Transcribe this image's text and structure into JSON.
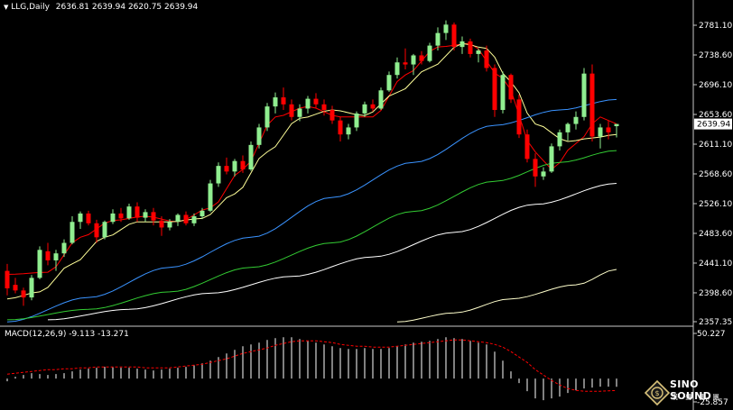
{
  "header": {
    "symbol": "LLG,Daily",
    "ohlc": "2636.81 2639.94 2620.75 2639.94"
  },
  "macd_header": "MACD(12,26,9) -9.113 -13.271",
  "logo": {
    "brand": "SINO SOUND",
    "sub": "漢 聲 集 團"
  },
  "colors": {
    "bull": "#90EE90",
    "bear": "#FF0000",
    "ma5": "#FF0000",
    "ma10": "#FFFF99",
    "ma60": "#3A93FF",
    "ma120": "#33CC33",
    "ma200": "#FFFFFF",
    "ma365": "#FFFFCC",
    "macd_hist": "#FFFFFF",
    "macd_signal": "#FF0000"
  },
  "chart_data": [
    {
      "type": "candlestick",
      "series_title": "LLG,Daily",
      "current_price": "2639.94",
      "y_ticks": [
        "2781.10",
        "2738.60",
        "2696.10",
        "2653.60",
        "2611.10",
        "2568.60",
        "2526.10",
        "2483.60",
        "2441.10",
        "2398.60",
        "2357.35"
      ],
      "ylim": [
        2357.35,
        2781.1
      ],
      "candles": [
        [
          2430,
          2440,
          2395,
          2405
        ],
        [
          2410,
          2420,
          2398,
          2402
        ],
        [
          2402,
          2406,
          2380,
          2392
        ],
        [
          2392,
          2424,
          2388,
          2420
        ],
        [
          2420,
          2465,
          2418,
          2460
        ],
        [
          2458,
          2470,
          2438,
          2445
        ],
        [
          2445,
          2460,
          2430,
          2455
        ],
        [
          2455,
          2475,
          2450,
          2470
        ],
        [
          2470,
          2508,
          2468,
          2500
        ],
        [
          2500,
          2515,
          2490,
          2512
        ],
        [
          2512,
          2516,
          2495,
          2498
        ],
        [
          2498,
          2503,
          2470,
          2478
        ],
        [
          2478,
          2502,
          2475,
          2500
        ],
        [
          2500,
          2518,
          2497,
          2512
        ],
        [
          2512,
          2520,
          2500,
          2505
        ],
        [
          2505,
          2526,
          2503,
          2522
        ],
        [
          2522,
          2528,
          2500,
          2506
        ],
        [
          2506,
          2518,
          2500,
          2514
        ],
        [
          2514,
          2520,
          2495,
          2502
        ],
        [
          2502,
          2508,
          2480,
          2492
        ],
        [
          2492,
          2504,
          2488,
          2500
        ],
        [
          2500,
          2512,
          2494,
          2510
        ],
        [
          2510,
          2515,
          2495,
          2498
        ],
        [
          2498,
          2512,
          2494,
          2508
        ],
        [
          2508,
          2520,
          2504,
          2516
        ],
        [
          2516,
          2560,
          2514,
          2555
        ],
        [
          2555,
          2585,
          2550,
          2580
        ],
        [
          2580,
          2592,
          2568,
          2572
        ],
        [
          2572,
          2590,
          2565,
          2587
        ],
        [
          2587,
          2595,
          2570,
          2575
        ],
        [
          2575,
          2615,
          2573,
          2610
        ],
        [
          2610,
          2640,
          2605,
          2635
        ],
        [
          2635,
          2670,
          2630,
          2665
        ],
        [
          2665,
          2685,
          2655,
          2678
        ],
        [
          2678,
          2692,
          2660,
          2668
        ],
        [
          2668,
          2675,
          2645,
          2650
        ],
        [
          2650,
          2668,
          2644,
          2662
        ],
        [
          2662,
          2680,
          2655,
          2676
        ],
        [
          2676,
          2684,
          2662,
          2668
        ],
        [
          2668,
          2675,
          2652,
          2660
        ],
        [
          2660,
          2666,
          2640,
          2645
        ],
        [
          2645,
          2650,
          2615,
          2625
        ],
        [
          2625,
          2640,
          2618,
          2635
        ],
        [
          2635,
          2658,
          2630,
          2655
        ],
        [
          2655,
          2672,
          2650,
          2668
        ],
        [
          2668,
          2675,
          2658,
          2662
        ],
        [
          2662,
          2692,
          2660,
          2688
        ],
        [
          2688,
          2715,
          2686,
          2710
        ],
        [
          2710,
          2735,
          2705,
          2728
        ],
        [
          2728,
          2748,
          2718,
          2725
        ],
        [
          2725,
          2740,
          2710,
          2738
        ],
        [
          2738,
          2744,
          2725,
          2730
        ],
        [
          2730,
          2756,
          2728,
          2752
        ],
        [
          2752,
          2778,
          2745,
          2770
        ],
        [
          2770,
          2788,
          2760,
          2782
        ],
        [
          2782,
          2785,
          2745,
          2750
        ],
        [
          2750,
          2765,
          2740,
          2758
        ],
        [
          2758,
          2762,
          2735,
          2740
        ],
        [
          2740,
          2748,
          2728,
          2745
        ],
        [
          2745,
          2752,
          2715,
          2720
        ],
        [
          2720,
          2725,
          2650,
          2660
        ],
        [
          2660,
          2715,
          2655,
          2710
        ],
        [
          2710,
          2712,
          2670,
          2675
        ],
        [
          2675,
          2682,
          2620,
          2625
        ],
        [
          2625,
          2632,
          2585,
          2590
        ],
        [
          2590,
          2598,
          2550,
          2565
        ],
        [
          2565,
          2578,
          2560,
          2572
        ],
        [
          2572,
          2612,
          2570,
          2608
        ],
        [
          2608,
          2632,
          2602,
          2628
        ],
        [
          2628,
          2642,
          2616,
          2640
        ],
        [
          2640,
          2658,
          2632,
          2650
        ],
        [
          2650,
          2720,
          2645,
          2712
        ],
        [
          2712,
          2725,
          2615,
          2622
        ],
        [
          2622,
          2640,
          2605,
          2635
        ],
        [
          2635,
          2645,
          2618,
          2628
        ],
        [
          2636.81,
          2639.94,
          2620.75,
          2639.94
        ]
      ],
      "moving_averages": [
        {
          "name": "ma5",
          "anchors": [
            [
              0,
              2425
            ],
            [
              5,
              2428
            ],
            [
              9,
              2478
            ],
            [
              13,
              2502
            ],
            [
              17,
              2508
            ],
            [
              21,
              2500
            ],
            [
              25,
              2520
            ],
            [
              29,
              2575
            ],
            [
              33,
              2650
            ],
            [
              37,
              2665
            ],
            [
              41,
              2650
            ],
            [
              45,
              2650
            ],
            [
              49,
              2710
            ],
            [
              53,
              2750
            ],
            [
              57,
              2755
            ],
            [
              61,
              2705
            ],
            [
              65,
              2600
            ],
            [
              67,
              2575
            ],
            [
              70,
              2612
            ],
            [
              73,
              2650
            ],
            [
              75,
              2640
            ]
          ]
        },
        {
          "name": "ma10",
          "anchors": [
            [
              0,
              2390
            ],
            [
              4,
              2400
            ],
            [
              8,
              2440
            ],
            [
              12,
              2478
            ],
            [
              16,
              2500
            ],
            [
              20,
              2500
            ],
            [
              24,
              2505
            ],
            [
              28,
              2540
            ],
            [
              32,
              2600
            ],
            [
              36,
              2648
            ],
            [
              40,
              2660
            ],
            [
              44,
              2652
            ],
            [
              48,
              2685
            ],
            [
              52,
              2720
            ],
            [
              56,
              2755
            ],
            [
              59,
              2748
            ],
            [
              62,
              2700
            ],
            [
              65,
              2640
            ],
            [
              69,
              2615
            ],
            [
              72,
              2620
            ],
            [
              75,
              2625
            ]
          ]
        },
        {
          "name": "ma60",
          "anchors": [
            [
              0,
              2357
            ],
            [
              10,
              2392
            ],
            [
              20,
              2435
            ],
            [
              30,
              2478
            ],
            [
              40,
              2535
            ],
            [
              50,
              2585
            ],
            [
              60,
              2638
            ],
            [
              68,
              2660
            ],
            [
              75,
              2675
            ]
          ]
        },
        {
          "name": "ma120",
          "anchors": [
            [
              0,
              2360
            ],
            [
              10,
              2375
            ],
            [
              20,
              2400
            ],
            [
              30,
              2435
            ],
            [
              40,
              2470
            ],
            [
              50,
              2515
            ],
            [
              60,
              2558
            ],
            [
              68,
              2585
            ],
            [
              75,
              2602
            ]
          ]
        },
        {
          "name": "ma200",
          "anchors": [
            [
              5,
              2360
            ],
            [
              15,
              2375
            ],
            [
              25,
              2398
            ],
            [
              35,
              2422
            ],
            [
              45,
              2450
            ],
            [
              55,
              2485
            ],
            [
              65,
              2525
            ],
            [
              75,
              2555
            ]
          ]
        },
        {
          "name": "ma365",
          "anchors": [
            [
              48,
              2357
            ],
            [
              55,
              2370
            ],
            [
              62,
              2390
            ],
            [
              70,
              2410
            ],
            [
              75,
              2432
            ]
          ]
        }
      ]
    },
    {
      "type": "macd",
      "title": "MACD(12,26,9)",
      "y_ticks": [
        "50.227",
        "-25.857"
      ],
      "ylim": [
        -25.857,
        50.227
      ],
      "histogram": [
        -3,
        2,
        4,
        6,
        5,
        4,
        5,
        6,
        8,
        10,
        11,
        12,
        13,
        13,
        12,
        12,
        11,
        10,
        9,
        10,
        11,
        12,
        13,
        15,
        17,
        20,
        24,
        28,
        32,
        36,
        38,
        40,
        43,
        45,
        46,
        46,
        44,
        42,
        40,
        38,
        36,
        34,
        33,
        33,
        34,
        33,
        33,
        34,
        36,
        38,
        40,
        41,
        42,
        44,
        46,
        45,
        44,
        42,
        40,
        38,
        30,
        20,
        8,
        -5,
        -14,
        -22,
        -24,
        -22,
        -20,
        -16,
        -13,
        -11,
        -10,
        -9,
        -9,
        -9.113
      ],
      "signal": [
        5,
        6,
        7,
        8,
        9,
        10,
        10,
        11,
        11,
        12,
        12,
        13,
        13,
        13,
        13,
        13,
        13,
        12,
        12,
        12,
        12,
        13,
        14,
        15,
        16,
        18,
        20,
        22,
        25,
        28,
        30,
        32,
        34,
        37,
        39,
        41,
        42,
        42,
        42,
        41,
        40,
        38,
        37,
        36,
        36,
        35,
        35,
        35,
        36,
        37,
        38,
        39,
        40,
        41,
        42,
        43,
        43,
        42,
        41,
        40,
        38,
        35,
        30,
        24,
        18,
        10,
        4,
        -2,
        -7,
        -11,
        -13,
        -14,
        -14,
        -14,
        -13.5,
        -13.271
      ]
    }
  ]
}
